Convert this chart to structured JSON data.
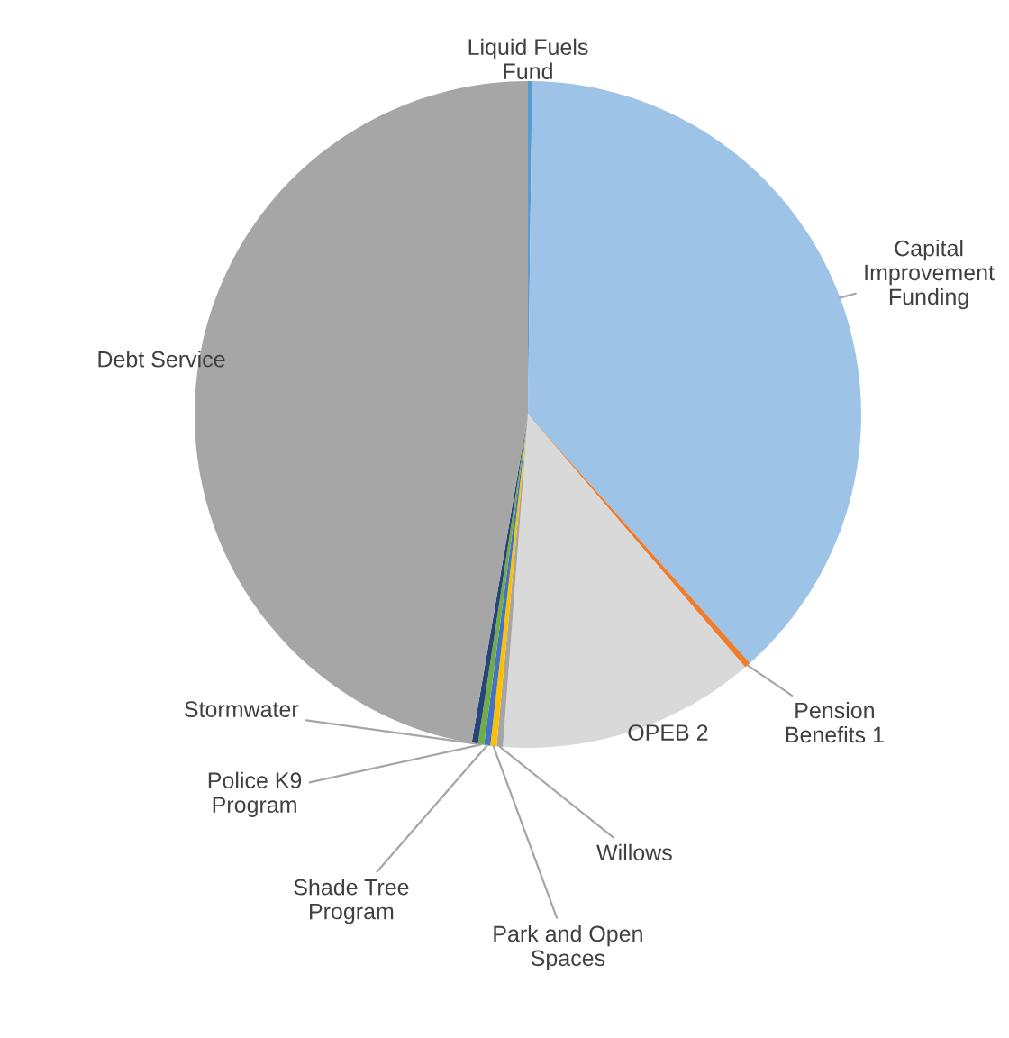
{
  "chart_data": {
    "type": "pie",
    "categories": [
      "Liquid Fuels Fund",
      "Capital Improvement Funding",
      "Pension Benefits 1",
      "OPEB 2",
      "Willows",
      "Park and Open Spaces",
      "Shade Tree Program",
      "Police K9 Program",
      "Stormwater",
      "Debt Service"
    ],
    "values": [
      0.2,
      38.2,
      0.3,
      12.5,
      0.3,
      0.3,
      0.3,
      0.3,
      0.3,
      47.3
    ],
    "colors": [
      "#5b9bd5",
      "#9dc3e6",
      "#ed7d31",
      "#d9d9d9",
      "#a5a5a5",
      "#ffc000",
      "#4472c4",
      "#70ad47",
      "#264478",
      "#a6a6a6"
    ]
  }
}
